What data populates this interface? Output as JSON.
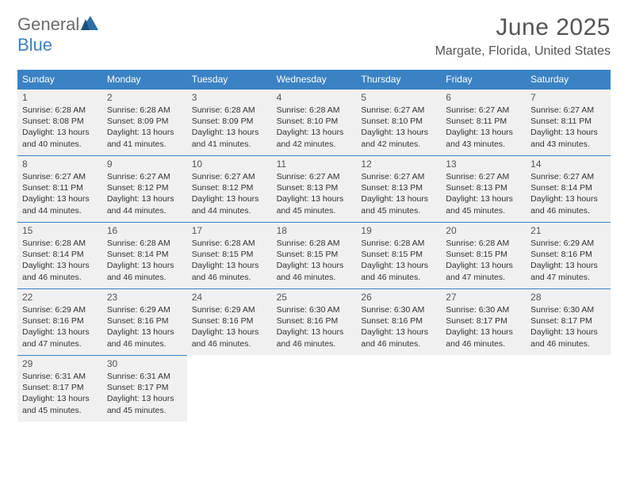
{
  "brand": {
    "general": "General",
    "blue": "Blue"
  },
  "title": "June 2025",
  "location": "Margate, Florida, United States",
  "daysOfWeek": [
    "Sunday",
    "Monday",
    "Tuesday",
    "Wednesday",
    "Thursday",
    "Friday",
    "Saturday"
  ],
  "colors": {
    "headerBlue": "#3b82c4",
    "cellBg": "#f0f0f0",
    "text": "#333333",
    "titleText": "#555555"
  },
  "calendar": {
    "rows": 5,
    "cols": 7,
    "cells": [
      {
        "n": "1",
        "sunrise": "6:28 AM",
        "sunset": "8:08 PM",
        "daylight": "13 hours and 40 minutes."
      },
      {
        "n": "2",
        "sunrise": "6:28 AM",
        "sunset": "8:09 PM",
        "daylight": "13 hours and 41 minutes."
      },
      {
        "n": "3",
        "sunrise": "6:28 AM",
        "sunset": "8:09 PM",
        "daylight": "13 hours and 41 minutes."
      },
      {
        "n": "4",
        "sunrise": "6:28 AM",
        "sunset": "8:10 PM",
        "daylight": "13 hours and 42 minutes."
      },
      {
        "n": "5",
        "sunrise": "6:27 AM",
        "sunset": "8:10 PM",
        "daylight": "13 hours and 42 minutes."
      },
      {
        "n": "6",
        "sunrise": "6:27 AM",
        "sunset": "8:11 PM",
        "daylight": "13 hours and 43 minutes."
      },
      {
        "n": "7",
        "sunrise": "6:27 AM",
        "sunset": "8:11 PM",
        "daylight": "13 hours and 43 minutes."
      },
      {
        "n": "8",
        "sunrise": "6:27 AM",
        "sunset": "8:11 PM",
        "daylight": "13 hours and 44 minutes."
      },
      {
        "n": "9",
        "sunrise": "6:27 AM",
        "sunset": "8:12 PM",
        "daylight": "13 hours and 44 minutes."
      },
      {
        "n": "10",
        "sunrise": "6:27 AM",
        "sunset": "8:12 PM",
        "daylight": "13 hours and 44 minutes."
      },
      {
        "n": "11",
        "sunrise": "6:27 AM",
        "sunset": "8:13 PM",
        "daylight": "13 hours and 45 minutes."
      },
      {
        "n": "12",
        "sunrise": "6:27 AM",
        "sunset": "8:13 PM",
        "daylight": "13 hours and 45 minutes."
      },
      {
        "n": "13",
        "sunrise": "6:27 AM",
        "sunset": "8:13 PM",
        "daylight": "13 hours and 45 minutes."
      },
      {
        "n": "14",
        "sunrise": "6:27 AM",
        "sunset": "8:14 PM",
        "daylight": "13 hours and 46 minutes."
      },
      {
        "n": "15",
        "sunrise": "6:28 AM",
        "sunset": "8:14 PM",
        "daylight": "13 hours and 46 minutes."
      },
      {
        "n": "16",
        "sunrise": "6:28 AM",
        "sunset": "8:14 PM",
        "daylight": "13 hours and 46 minutes."
      },
      {
        "n": "17",
        "sunrise": "6:28 AM",
        "sunset": "8:15 PM",
        "daylight": "13 hours and 46 minutes."
      },
      {
        "n": "18",
        "sunrise": "6:28 AM",
        "sunset": "8:15 PM",
        "daylight": "13 hours and 46 minutes."
      },
      {
        "n": "19",
        "sunrise": "6:28 AM",
        "sunset": "8:15 PM",
        "daylight": "13 hours and 46 minutes."
      },
      {
        "n": "20",
        "sunrise": "6:28 AM",
        "sunset": "8:15 PM",
        "daylight": "13 hours and 47 minutes."
      },
      {
        "n": "21",
        "sunrise": "6:29 AM",
        "sunset": "8:16 PM",
        "daylight": "13 hours and 47 minutes."
      },
      {
        "n": "22",
        "sunrise": "6:29 AM",
        "sunset": "8:16 PM",
        "daylight": "13 hours and 47 minutes."
      },
      {
        "n": "23",
        "sunrise": "6:29 AM",
        "sunset": "8:16 PM",
        "daylight": "13 hours and 46 minutes."
      },
      {
        "n": "24",
        "sunrise": "6:29 AM",
        "sunset": "8:16 PM",
        "daylight": "13 hours and 46 minutes."
      },
      {
        "n": "25",
        "sunrise": "6:30 AM",
        "sunset": "8:16 PM",
        "daylight": "13 hours and 46 minutes."
      },
      {
        "n": "26",
        "sunrise": "6:30 AM",
        "sunset": "8:16 PM",
        "daylight": "13 hours and 46 minutes."
      },
      {
        "n": "27",
        "sunrise": "6:30 AM",
        "sunset": "8:17 PM",
        "daylight": "13 hours and 46 minutes."
      },
      {
        "n": "28",
        "sunrise": "6:30 AM",
        "sunset": "8:17 PM",
        "daylight": "13 hours and 46 minutes."
      },
      {
        "n": "29",
        "sunrise": "6:31 AM",
        "sunset": "8:17 PM",
        "daylight": "13 hours and 45 minutes."
      },
      {
        "n": "30",
        "sunrise": "6:31 AM",
        "sunset": "8:17 PM",
        "daylight": "13 hours and 45 minutes."
      },
      null,
      null,
      null,
      null,
      null
    ]
  },
  "labels": {
    "sunrise": "Sunrise: ",
    "sunset": "Sunset: ",
    "daylight": "Daylight: "
  }
}
